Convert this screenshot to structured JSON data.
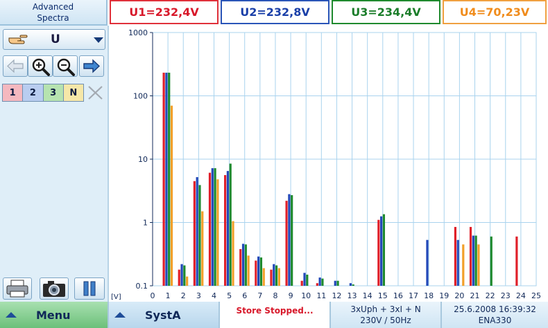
{
  "header": {
    "title_line1": "Advanced",
    "title_line2": "Spectra",
    "u1": "U1=232,4V",
    "u2": "U2=232,8V",
    "u3": "U3=234,4V",
    "u4": "U4=70,23V"
  },
  "sidebar": {
    "quantity": "U",
    "hand_icon": "pointing-hand-icon",
    "nav_icons": [
      "arrow-left-icon",
      "zoom-in-icon",
      "zoom-out-icon",
      "arrow-right-icon"
    ],
    "phases": [
      "1",
      "2",
      "3",
      "N"
    ],
    "bottom_icons": [
      "printer-icon",
      "camera-icon",
      "pause-icon"
    ]
  },
  "bottombar": {
    "menu": "Menu",
    "syst": "SystA",
    "store_status": "Store Stopped...",
    "connection_line1": "3xUph + 3xI + N",
    "connection_line2": "230V / 50Hz",
    "date_line1": "25.6.2008 16:39:32",
    "date_line2": "ENA330"
  },
  "colors": {
    "phase1": "#e0202a",
    "phase2": "#2248b8",
    "phase3": "#1f8a2e",
    "phaseN": "#f2a02a",
    "grid": "#a9d3ee"
  },
  "chart_data": {
    "type": "bar",
    "yscale": "log",
    "ylim": [
      0.1,
      1000
    ],
    "yticks": [
      "1000",
      "100",
      "10",
      "1",
      "0.1"
    ],
    "ylabel": "[V]",
    "xlim": [
      0,
      25
    ],
    "xticks": [
      "0",
      "1",
      "2",
      "3",
      "4",
      "5",
      "6",
      "7",
      "8",
      "9",
      "10",
      "11",
      "12",
      "13",
      "14",
      "15",
      "16",
      "17",
      "18",
      "19",
      "20",
      "21",
      "22",
      "23",
      "24",
      "25"
    ],
    "grid": true,
    "categories": [
      1,
      2,
      3,
      4,
      5,
      6,
      7,
      8,
      9,
      10,
      11,
      12,
      13,
      14,
      15,
      16,
      17,
      18,
      19,
      20,
      21,
      22,
      23,
      24,
      25
    ],
    "series": [
      {
        "color": "#e0202a",
        "values": [
          232,
          0.18,
          4.5,
          6.1,
          5.6,
          0.38,
          0.25,
          0.18,
          2.2,
          0.12,
          0.11,
          null,
          null,
          null,
          1.1,
          null,
          null,
          null,
          null,
          0.85,
          0.85,
          null,
          null,
          0.6,
          null
        ]
      },
      {
        "color": "#2248b8",
        "values": [
          232,
          0.22,
          5.2,
          7.2,
          6.5,
          0.46,
          0.29,
          0.22,
          2.8,
          0.16,
          0.135,
          0.12,
          0.11,
          null,
          1.25,
          null,
          null,
          0.53,
          null,
          0.53,
          0.62,
          null,
          null,
          null,
          null
        ]
      },
      {
        "color": "#1f8a2e",
        "values": [
          232,
          0.21,
          3.9,
          7.2,
          8.5,
          0.45,
          0.28,
          0.21,
          2.7,
          0.15,
          0.13,
          0.12,
          0.105,
          null,
          1.35,
          null,
          null,
          null,
          null,
          null,
          0.62,
          0.6,
          null,
          null,
          null
        ]
      },
      {
        "color": "#f2a02a",
        "values": [
          70,
          0.14,
          1.5,
          4.8,
          1.05,
          0.3,
          0.19,
          0.19,
          null,
          null,
          null,
          null,
          null,
          null,
          null,
          null,
          null,
          null,
          null,
          0.45,
          0.45,
          null,
          null,
          null,
          null
        ]
      }
    ]
  }
}
